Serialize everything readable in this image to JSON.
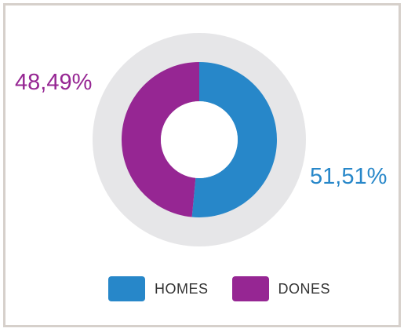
{
  "chart_data": {
    "type": "pie",
    "donut": true,
    "series": [
      {
        "name": "HOMES",
        "value": 51.51,
        "label": "51,51%",
        "color": "#2787c9"
      },
      {
        "name": "DONES",
        "value": 48.49,
        "label": "48,49%",
        "color": "#962693"
      }
    ],
    "legend_position": "bottom",
    "background_ring_color": "#e6e6e8"
  },
  "legend": {
    "items": [
      {
        "label": "HOMES",
        "color": "#2787c9"
      },
      {
        "label": "DONES",
        "color": "#962693"
      }
    ]
  }
}
